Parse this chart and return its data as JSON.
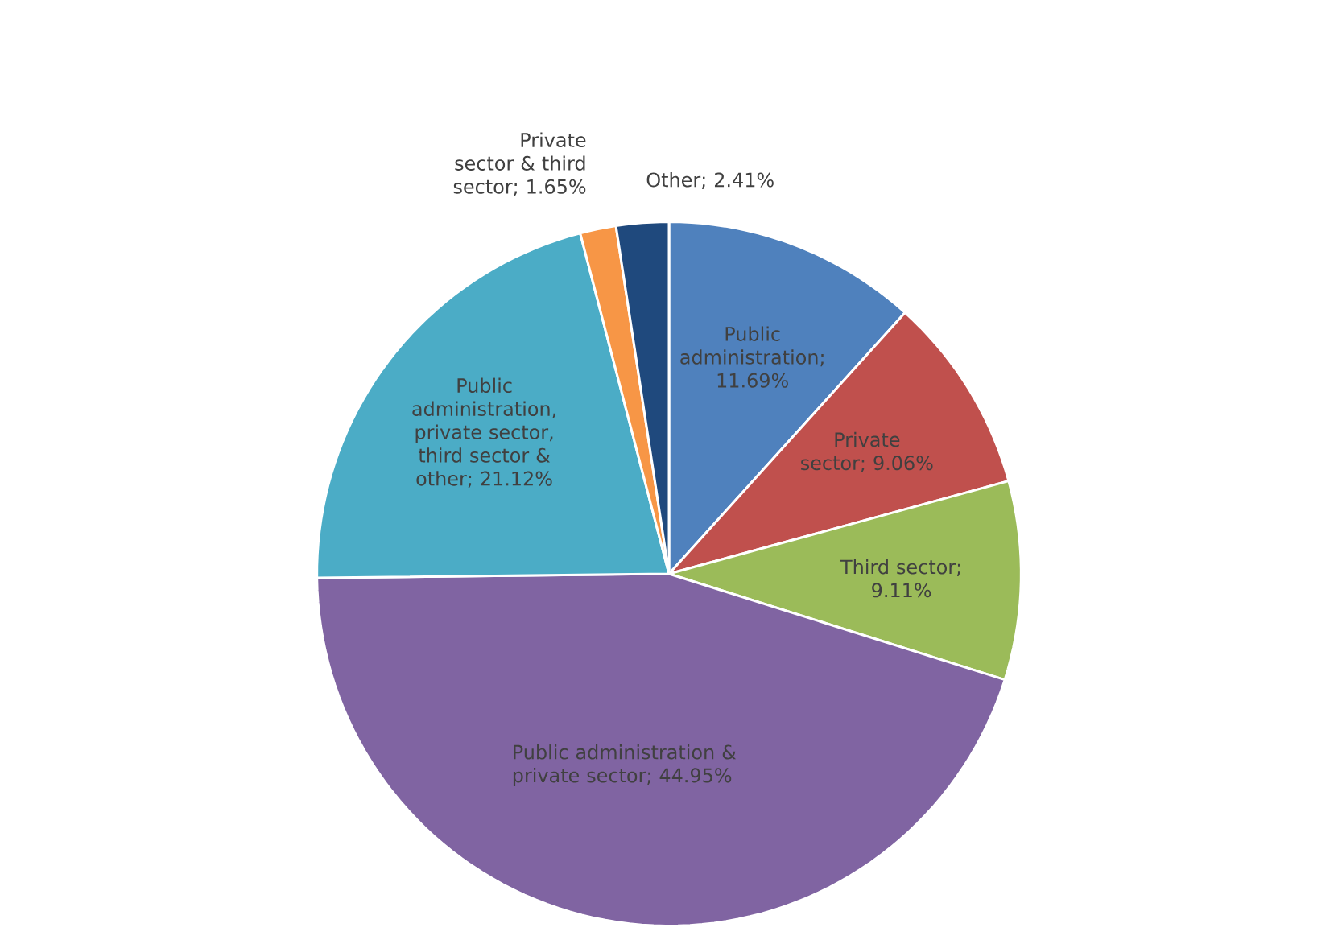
{
  "chart_data": {
    "type": "pie",
    "categories": [
      "Public administration",
      "Private sector",
      "Third sector",
      "Public administration & private sector",
      "Public administration, private sector, third sector & other",
      "Private sector & third sector",
      "Other"
    ],
    "values": [
      11.69,
      9.06,
      9.11,
      44.95,
      21.12,
      1.65,
      2.41
    ],
    "value_labels": [
      "; 11.69%",
      "; 9.06%",
      "; 9.11%",
      "; 44.95%",
      "; 21.12%",
      "; 1.65%",
      "; 2.41%"
    ],
    "colors": [
      "#4f81bd",
      "#c0504d",
      "#9bbb59",
      "#8064a2",
      "#4bacc6",
      "#f79646",
      "#1f497d"
    ]
  }
}
